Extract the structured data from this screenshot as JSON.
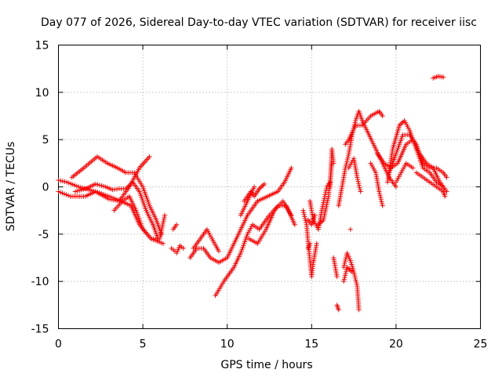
{
  "chart_data": {
    "type": "scatter",
    "title": "Day 077 of 2026, Sidereal Day-to-day VTEC variation (SDTVAR) for receiver iisc",
    "xlabel": "GPS time / hours",
    "ylabel": "SDTVAR / TECUs",
    "xlim": [
      0,
      25
    ],
    "ylim": [
      -15,
      15
    ],
    "xticks": [
      0,
      5,
      10,
      15,
      20,
      25
    ],
    "yticks": [
      -15,
      -10,
      -5,
      0,
      5,
      10,
      15
    ],
    "grid": true,
    "marker": "+",
    "series": [
      {
        "color": "#ff0000",
        "tracks": [
          [
            [
              0,
              0.7
            ],
            [
              0.5,
              0.5
            ],
            [
              1.2,
              0
            ],
            [
              2.2,
              -0.5
            ],
            [
              3.0,
              -1.3
            ],
            [
              3.6,
              -1.5
            ],
            [
              4.2,
              0
            ],
            [
              4.8,
              2.0
            ],
            [
              5.4,
              3.2
            ]
          ],
          [
            [
              0,
              -0.5
            ],
            [
              0.7,
              -1
            ],
            [
              1.6,
              -1
            ],
            [
              2.2,
              -0.5
            ],
            [
              3.0,
              -1.0
            ],
            [
              3.7,
              -1.5
            ],
            [
              4.3,
              -2
            ],
            [
              4.8,
              -4
            ],
            [
              5.5,
              -5.5
            ],
            [
              6.2,
              -6
            ]
          ],
          [
            [
              0.8,
              1.0
            ],
            [
              1.5,
              2.0
            ],
            [
              2.3,
              3.2
            ],
            [
              2.9,
              2.5
            ],
            [
              3.5,
              2.0
            ],
            [
              4.0,
              1.5
            ],
            [
              4.5,
              1.5
            ],
            [
              5.0,
              0
            ],
            [
              5.4,
              -2
            ],
            [
              5.8,
              -3.5
            ],
            [
              6.1,
              -5
            ]
          ],
          [
            [
              1.0,
              -0.5
            ],
            [
              1.6,
              -0.2
            ],
            [
              2.2,
              0.3
            ],
            [
              2.8,
              0
            ],
            [
              3.2,
              -0.3
            ],
            [
              3.6,
              -0.2
            ],
            [
              4.0,
              -0.2
            ],
            [
              4.4,
              0.5
            ],
            [
              4.8,
              -0.5
            ],
            [
              5.2,
              -2.5
            ],
            [
              5.6,
              -4.0
            ],
            [
              5.9,
              -5.5
            ]
          ],
          [
            [
              3.3,
              -2.5
            ],
            [
              3.8,
              -1.5
            ],
            [
              4.2,
              -1
            ],
            [
              4.6,
              -2.5
            ],
            [
              5.0,
              -4.5
            ],
            [
              5.5,
              -5.5
            ],
            [
              6.0,
              -5.5
            ],
            [
              6.3,
              -3.0
            ]
          ],
          [
            [
              6.7,
              -6.5
            ],
            [
              6.9,
              -6.8
            ],
            [
              7.0,
              -7
            ],
            [
              7.2,
              -6.2
            ],
            [
              7.4,
              -6.5
            ]
          ],
          [
            [
              6.8,
              -4.5
            ],
            [
              7.0,
              -4.0
            ]
          ],
          [
            [
              7.8,
              -7.5
            ],
            [
              8.2,
              -6.5
            ],
            [
              8.6,
              -6.5
            ],
            [
              9.0,
              -7.5
            ],
            [
              9.5,
              -8
            ],
            [
              10.0,
              -7.5
            ],
            [
              10.4,
              -6
            ],
            [
              10.8,
              -4.5
            ],
            [
              11.2,
              -3
            ],
            [
              11.8,
              -1.5
            ],
            [
              12.4,
              -1
            ],
            [
              13.0,
              -0.5
            ],
            [
              13.4,
              0.5
            ],
            [
              13.8,
              2.0
            ]
          ],
          [
            [
              8.0,
              -6.5
            ],
            [
              8.4,
              -5.5
            ],
            [
              8.8,
              -4.5
            ],
            [
              9.1,
              -5.5
            ],
            [
              9.5,
              -6.8
            ]
          ],
          [
            [
              9.3,
              -11.5
            ],
            [
              9.8,
              -10
            ],
            [
              10.4,
              -8.5
            ],
            [
              10.8,
              -7
            ],
            [
              11.2,
              -5
            ],
            [
              11.5,
              -4
            ],
            [
              11.9,
              -4.5
            ],
            [
              12.5,
              -3
            ],
            [
              13.0,
              -2
            ],
            [
              13.5,
              -2
            ],
            [
              14.0,
              -4
            ]
          ],
          [
            [
              11.0,
              -1.5
            ],
            [
              11.4,
              -0.5
            ],
            [
              11.6,
              -1.0
            ],
            [
              11.9,
              -0.2
            ],
            [
              12.2,
              0.3
            ]
          ],
          [
            [
              10.8,
              -3.0
            ],
            [
              11.2,
              -1.5
            ],
            [
              11.6,
              0
            ]
          ],
          [
            [
              11.3,
              -5.5
            ],
            [
              11.8,
              -6.0
            ],
            [
              12.3,
              -4.5
            ],
            [
              12.8,
              -2.5
            ],
            [
              13.3,
              -1.5
            ],
            [
              13.8,
              -3.0
            ]
          ],
          [
            [
              14.5,
              -2.5
            ],
            [
              14.7,
              -4.0
            ],
            [
              14.8,
              -6
            ],
            [
              15.0,
              -9.5
            ],
            [
              15.1,
              -8.0
            ],
            [
              15.3,
              -6.0
            ]
          ],
          [
            [
              14.9,
              -1.5
            ],
            [
              15.1,
              -3.5
            ],
            [
              15.4,
              -4.5
            ],
            [
              15.6,
              -2.5
            ],
            [
              15.9,
              0
            ],
            [
              16.1,
              0.5
            ]
          ],
          [
            [
              14.8,
              -6.5
            ],
            [
              14.9,
              -6
            ]
          ],
          [
            [
              15.4,
              -4.0
            ],
            [
              15.7,
              -3.5
            ],
            [
              16.0,
              -1.0
            ],
            [
              16.2,
              2.5
            ]
          ],
          [
            [
              16.1,
              0
            ],
            [
              16.2,
              4.0
            ],
            [
              16.3,
              2.5
            ]
          ],
          [
            [
              14.8,
              -3.5
            ],
            [
              15.0,
              -4.0
            ],
            [
              15.2,
              -3.0
            ]
          ],
          [
            [
              16.3,
              -7.5
            ],
            [
              16.4,
              -8.5
            ],
            [
              16.5,
              -9.5
            ]
          ],
          [
            [
              16.5,
              -12.5
            ],
            [
              16.6,
              -13
            ]
          ],
          [
            [
              16.9,
              -8.5
            ],
            [
              17.1,
              -7.0
            ],
            [
              17.3,
              -7.8
            ],
            [
              17.5,
              -9.0
            ],
            [
              17.7,
              -10.5
            ],
            [
              17.8,
              -13
            ]
          ],
          [
            [
              16.9,
              -10.0
            ],
            [
              17.1,
              -8.5
            ],
            [
              17.4,
              -9.0
            ]
          ],
          [
            [
              16.6,
              -2.0
            ],
            [
              16.8,
              0
            ],
            [
              17.0,
              2.0
            ],
            [
              17.2,
              3.5
            ],
            [
              17.4,
              5.5
            ],
            [
              17.6,
              7.0
            ],
            [
              17.8,
              8.0
            ],
            [
              18.0,
              7.0
            ],
            [
              18.4,
              5.5
            ],
            [
              18.8,
              4.0
            ],
            [
              19.2,
              2.5
            ],
            [
              19.6,
              1.0
            ],
            [
              20.0,
              0
            ]
          ],
          [
            [
              17.0,
              4.5
            ],
            [
              17.2,
              5.0
            ],
            [
              17.6,
              6.5
            ],
            [
              18.0,
              6.5
            ],
            [
              18.5,
              7.5
            ],
            [
              19.0,
              8.0
            ],
            [
              19.2,
              7.5
            ]
          ],
          [
            [
              17.2,
              2.0
            ],
            [
              17.5,
              3.0
            ],
            [
              17.7,
              1.0
            ],
            [
              17.9,
              -0.5
            ]
          ],
          [
            [
              17.3,
              -4.5
            ]
          ],
          [
            [
              18.5,
              2.5
            ],
            [
              18.8,
              1.5
            ],
            [
              19.0,
              -0.5
            ],
            [
              19.2,
              -2.0
            ]
          ],
          [
            [
              18.9,
              3.5
            ],
            [
              19.3,
              2.5
            ],
            [
              19.7,
              2.0
            ],
            [
              20.1,
              2.5
            ],
            [
              20.6,
              4.5
            ],
            [
              21.0,
              5.0
            ],
            [
              21.4,
              3.5
            ],
            [
              21.8,
              2.5
            ],
            [
              22.2,
              2.0
            ],
            [
              22.6,
              0.5
            ],
            [
              23.0,
              -0.5
            ]
          ],
          [
            [
              19.5,
              0.5
            ],
            [
              19.8,
              4.0
            ],
            [
              20.2,
              6.5
            ],
            [
              20.5,
              7.0
            ],
            [
              20.8,
              6.0
            ],
            [
              21.2,
              4.0
            ],
            [
              21.6,
              2.0
            ],
            [
              22.0,
              1.5
            ],
            [
              22.4,
              0.5
            ],
            [
              22.8,
              0
            ]
          ],
          [
            [
              19.6,
              1.5
            ],
            [
              20.0,
              3.5
            ],
            [
              20.4,
              5.5
            ],
            [
              20.8,
              5.5
            ],
            [
              21.2,
              4.5
            ],
            [
              21.6,
              2.5
            ],
            [
              22.0,
              2.0
            ],
            [
              22.4,
              2.0
            ],
            [
              22.8,
              1.5
            ],
            [
              23.0,
              1.0
            ]
          ],
          [
            [
              20.0,
              0.5
            ],
            [
              20.3,
              1.5
            ],
            [
              20.6,
              2.5
            ],
            [
              21.0,
              2.0
            ]
          ],
          [
            [
              21.2,
              1.5
            ],
            [
              21.6,
              1.0
            ],
            [
              22.0,
              0.5
            ],
            [
              22.4,
              0
            ],
            [
              22.8,
              -0.5
            ],
            [
              22.9,
              -1.0
            ]
          ],
          [
            [
              22.2,
              11.5
            ],
            [
              22.5,
              11.7
            ],
            [
              22.8,
              11.6
            ]
          ]
        ]
      }
    ]
  }
}
